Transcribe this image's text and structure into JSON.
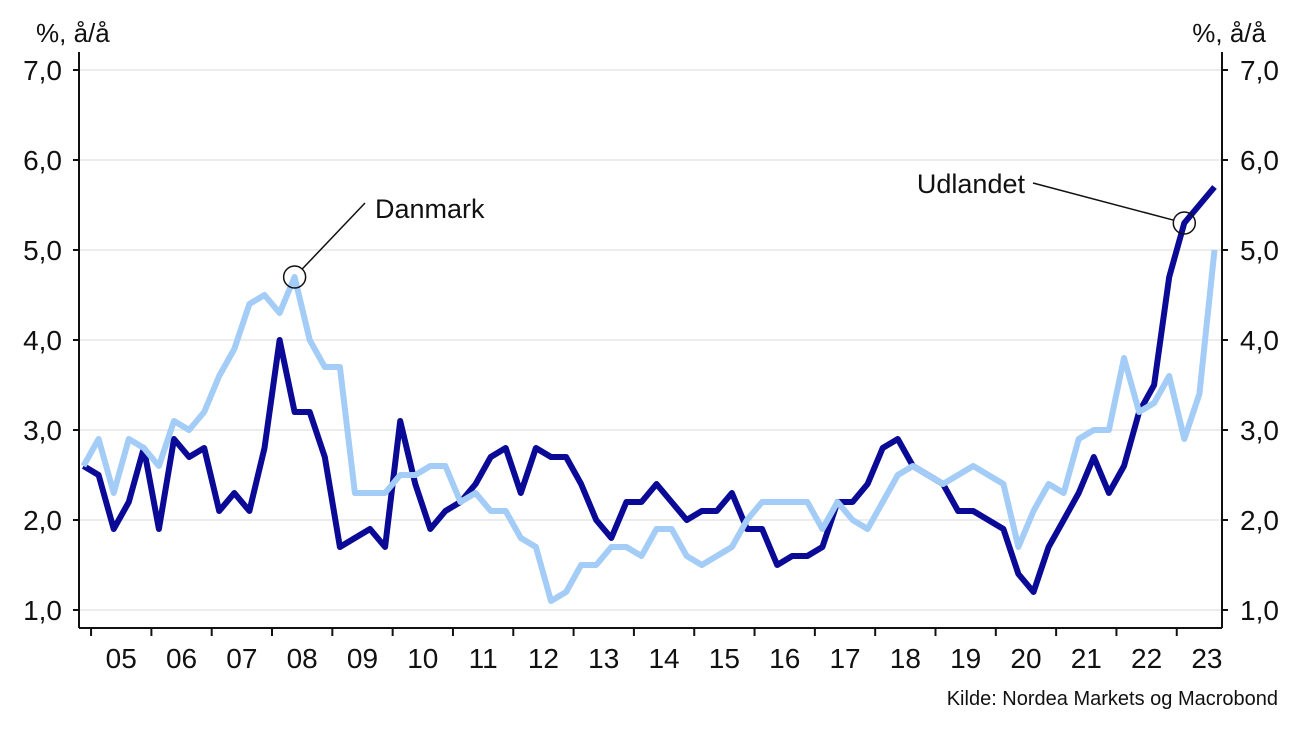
{
  "chart_data": {
    "type": "line",
    "y_unit_left": "%, å/å",
    "y_unit_right": "%, å/å",
    "ylim": [
      1.0,
      7.0
    ],
    "y_ticks": [
      "1,0",
      "2,0",
      "3,0",
      "4,0",
      "5,0",
      "6,0",
      "7,0"
    ],
    "x_tick_labels": [
      "05",
      "06",
      "07",
      "08",
      "09",
      "10",
      "11",
      "12",
      "13",
      "14",
      "15",
      "16",
      "17",
      "18",
      "19",
      "20",
      "21",
      "22",
      "23"
    ],
    "xlim": [
      2004.8,
      2023.75
    ],
    "grid": "horizontal",
    "series": [
      {
        "name": "Udlandet",
        "color": "#0a0a96",
        "points": [
          [
            2004.875,
            2.6
          ],
          [
            2005.125,
            2.5
          ],
          [
            2005.375,
            1.9
          ],
          [
            2005.625,
            2.2
          ],
          [
            2005.875,
            2.8
          ],
          [
            2006.125,
            1.9
          ],
          [
            2006.375,
            2.9
          ],
          [
            2006.625,
            2.7
          ],
          [
            2006.875,
            2.8
          ],
          [
            2007.125,
            2.1
          ],
          [
            2007.375,
            2.3
          ],
          [
            2007.625,
            2.1
          ],
          [
            2007.875,
            2.8
          ],
          [
            2008.125,
            4.0
          ],
          [
            2008.375,
            3.2
          ],
          [
            2008.625,
            3.2
          ],
          [
            2008.875,
            2.7
          ],
          [
            2009.125,
            1.7
          ],
          [
            2009.375,
            1.8
          ],
          [
            2009.625,
            1.9
          ],
          [
            2009.875,
            1.7
          ],
          [
            2010.125,
            3.1
          ],
          [
            2010.375,
            2.4
          ],
          [
            2010.625,
            1.9
          ],
          [
            2010.875,
            2.1
          ],
          [
            2011.125,
            2.2
          ],
          [
            2011.375,
            2.4
          ],
          [
            2011.625,
            2.7
          ],
          [
            2011.875,
            2.8
          ],
          [
            2012.125,
            2.3
          ],
          [
            2012.375,
            2.8
          ],
          [
            2012.625,
            2.7
          ],
          [
            2012.875,
            2.7
          ],
          [
            2013.125,
            2.4
          ],
          [
            2013.375,
            2.0
          ],
          [
            2013.625,
            1.8
          ],
          [
            2013.875,
            2.2
          ],
          [
            2014.125,
            2.2
          ],
          [
            2014.375,
            2.4
          ],
          [
            2014.625,
            2.2
          ],
          [
            2014.875,
            2.0
          ],
          [
            2015.125,
            2.1
          ],
          [
            2015.375,
            2.1
          ],
          [
            2015.625,
            2.3
          ],
          [
            2015.875,
            1.9
          ],
          [
            2016.125,
            1.9
          ],
          [
            2016.375,
            1.5
          ],
          [
            2016.625,
            1.6
          ],
          [
            2016.875,
            1.6
          ],
          [
            2017.125,
            1.7
          ],
          [
            2017.375,
            2.2
          ],
          [
            2017.625,
            2.2
          ],
          [
            2017.875,
            2.4
          ],
          [
            2018.125,
            2.8
          ],
          [
            2018.375,
            2.9
          ],
          [
            2018.625,
            2.6
          ],
          [
            2018.875,
            2.5
          ],
          [
            2019.125,
            2.4
          ],
          [
            2019.375,
            2.1
          ],
          [
            2019.625,
            2.1
          ],
          [
            2019.875,
            2.0
          ],
          [
            2020.125,
            1.9
          ],
          [
            2020.375,
            1.4
          ],
          [
            2020.625,
            1.2
          ],
          [
            2020.875,
            1.7
          ],
          [
            2021.125,
            2.0
          ],
          [
            2021.375,
            2.3
          ],
          [
            2021.625,
            2.7
          ],
          [
            2021.875,
            2.3
          ],
          [
            2022.125,
            2.6
          ],
          [
            2022.375,
            3.2
          ],
          [
            2022.625,
            3.5
          ],
          [
            2022.875,
            4.7
          ],
          [
            2023.125,
            5.3
          ],
          [
            2023.375,
            5.5
          ],
          [
            2023.625,
            5.7
          ]
        ]
      },
      {
        "name": "Danmark",
        "color": "#a3ccf7",
        "points": [
          [
            2004.875,
            2.6
          ],
          [
            2005.125,
            2.9
          ],
          [
            2005.375,
            2.3
          ],
          [
            2005.625,
            2.9
          ],
          [
            2005.875,
            2.8
          ],
          [
            2006.125,
            2.6
          ],
          [
            2006.375,
            3.1
          ],
          [
            2006.625,
            3.0
          ],
          [
            2006.875,
            3.2
          ],
          [
            2007.125,
            3.6
          ],
          [
            2007.375,
            3.9
          ],
          [
            2007.625,
            4.4
          ],
          [
            2007.875,
            4.5
          ],
          [
            2008.125,
            4.3
          ],
          [
            2008.375,
            4.7
          ],
          [
            2008.625,
            4.0
          ],
          [
            2008.875,
            3.7
          ],
          [
            2009.125,
            3.7
          ],
          [
            2009.375,
            2.3
          ],
          [
            2009.625,
            2.3
          ],
          [
            2009.875,
            2.3
          ],
          [
            2010.125,
            2.5
          ],
          [
            2010.375,
            2.5
          ],
          [
            2010.625,
            2.6
          ],
          [
            2010.875,
            2.6
          ],
          [
            2011.125,
            2.2
          ],
          [
            2011.375,
            2.3
          ],
          [
            2011.625,
            2.1
          ],
          [
            2011.875,
            2.1
          ],
          [
            2012.125,
            1.8
          ],
          [
            2012.375,
            1.7
          ],
          [
            2012.625,
            1.1
          ],
          [
            2012.875,
            1.2
          ],
          [
            2013.125,
            1.5
          ],
          [
            2013.375,
            1.5
          ],
          [
            2013.625,
            1.7
          ],
          [
            2013.875,
            1.7
          ],
          [
            2014.125,
            1.6
          ],
          [
            2014.375,
            1.9
          ],
          [
            2014.625,
            1.9
          ],
          [
            2014.875,
            1.6
          ],
          [
            2015.125,
            1.5
          ],
          [
            2015.375,
            1.6
          ],
          [
            2015.625,
            1.7
          ],
          [
            2015.875,
            2.0
          ],
          [
            2016.125,
            2.2
          ],
          [
            2016.375,
            2.2
          ],
          [
            2016.625,
            2.2
          ],
          [
            2016.875,
            2.2
          ],
          [
            2017.125,
            1.9
          ],
          [
            2017.375,
            2.2
          ],
          [
            2017.625,
            2.0
          ],
          [
            2017.875,
            1.9
          ],
          [
            2018.125,
            2.2
          ],
          [
            2018.375,
            2.5
          ],
          [
            2018.625,
            2.6
          ],
          [
            2018.875,
            2.5
          ],
          [
            2019.125,
            2.4
          ],
          [
            2019.375,
            2.5
          ],
          [
            2019.625,
            2.6
          ],
          [
            2019.875,
            2.5
          ],
          [
            2020.125,
            2.4
          ],
          [
            2020.375,
            1.7
          ],
          [
            2020.625,
            2.1
          ],
          [
            2020.875,
            2.4
          ],
          [
            2021.125,
            2.3
          ],
          [
            2021.375,
            2.9
          ],
          [
            2021.625,
            3.0
          ],
          [
            2021.875,
            3.0
          ],
          [
            2022.125,
            3.8
          ],
          [
            2022.375,
            3.2
          ],
          [
            2022.625,
            3.3
          ],
          [
            2022.875,
            3.6
          ],
          [
            2023.125,
            2.9
          ],
          [
            2023.375,
            3.4
          ],
          [
            2023.625,
            5.0
          ]
        ]
      }
    ],
    "annotations": [
      {
        "label": "Danmark",
        "series": "Danmark",
        "x": 2008.375,
        "y": 4.7
      },
      {
        "label": "Udlandet",
        "series": "Udlandet",
        "x": 2023.125,
        "y": 5.3
      }
    ],
    "source": "Kilde: Nordea Markets og Macrobond"
  }
}
